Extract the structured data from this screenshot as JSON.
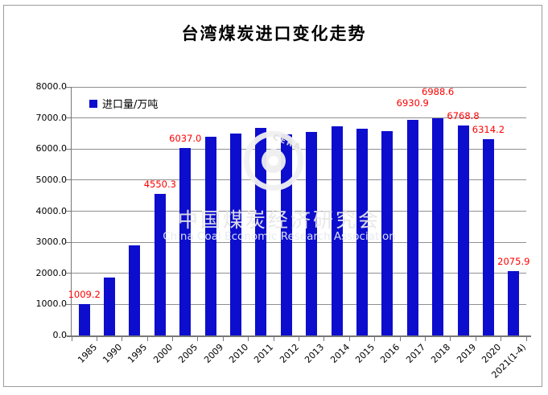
{
  "title": "台湾煤炭进口变化走势",
  "legend": {
    "label": "进口量/万吨"
  },
  "watermark": {
    "cn": "中国煤炭经济研究会",
    "en": "China Coal Economic Research Association",
    "logo": "CERA"
  },
  "colors": {
    "bar": "#0d0dce",
    "data_label": "#ff0000",
    "gridline": "#8f8f8f",
    "axis": "#777777",
    "border": "#9c9c9c"
  },
  "chart_data": {
    "type": "bar",
    "title": "台湾煤炭进口变化走势",
    "series_name": "进口量/万吨",
    "categories": [
      "1985",
      "1990",
      "1995",
      "2000",
      "2005",
      "2009",
      "2010",
      "2011",
      "2012",
      "2013",
      "2014",
      "2015",
      "2016",
      "2017",
      "2018",
      "2019",
      "2020",
      "2021(1-4)"
    ],
    "values": [
      1009.2,
      1860,
      2900,
      4550.3,
      6037.0,
      6390,
      6490,
      6680,
      6460,
      6540,
      6720,
      6650,
      6580,
      6930.9,
      6988.6,
      6768.8,
      6314.2,
      2075.9
    ],
    "data_labels": [
      "1009.2",
      null,
      null,
      "4550.3",
      "6037.0",
      null,
      null,
      null,
      null,
      null,
      null,
      null,
      null,
      "6930.9",
      "6988.6",
      "6768.8",
      "6314.2",
      "2075.9"
    ],
    "xlabel": "",
    "ylabel": "进口量/万吨",
    "ylim": [
      0,
      8000
    ],
    "ytick_step": 1000,
    "ytick_labels": [
      "8000.0",
      "7000.0",
      "6000.0",
      "5000.0",
      "4000.0",
      "3000.0",
      "2000.0",
      "1000.0",
      "0.0"
    ],
    "grid": true,
    "legend_position": "top-left-inside",
    "bar_color": "#0d0dce",
    "data_label_color": "#ff0000"
  }
}
